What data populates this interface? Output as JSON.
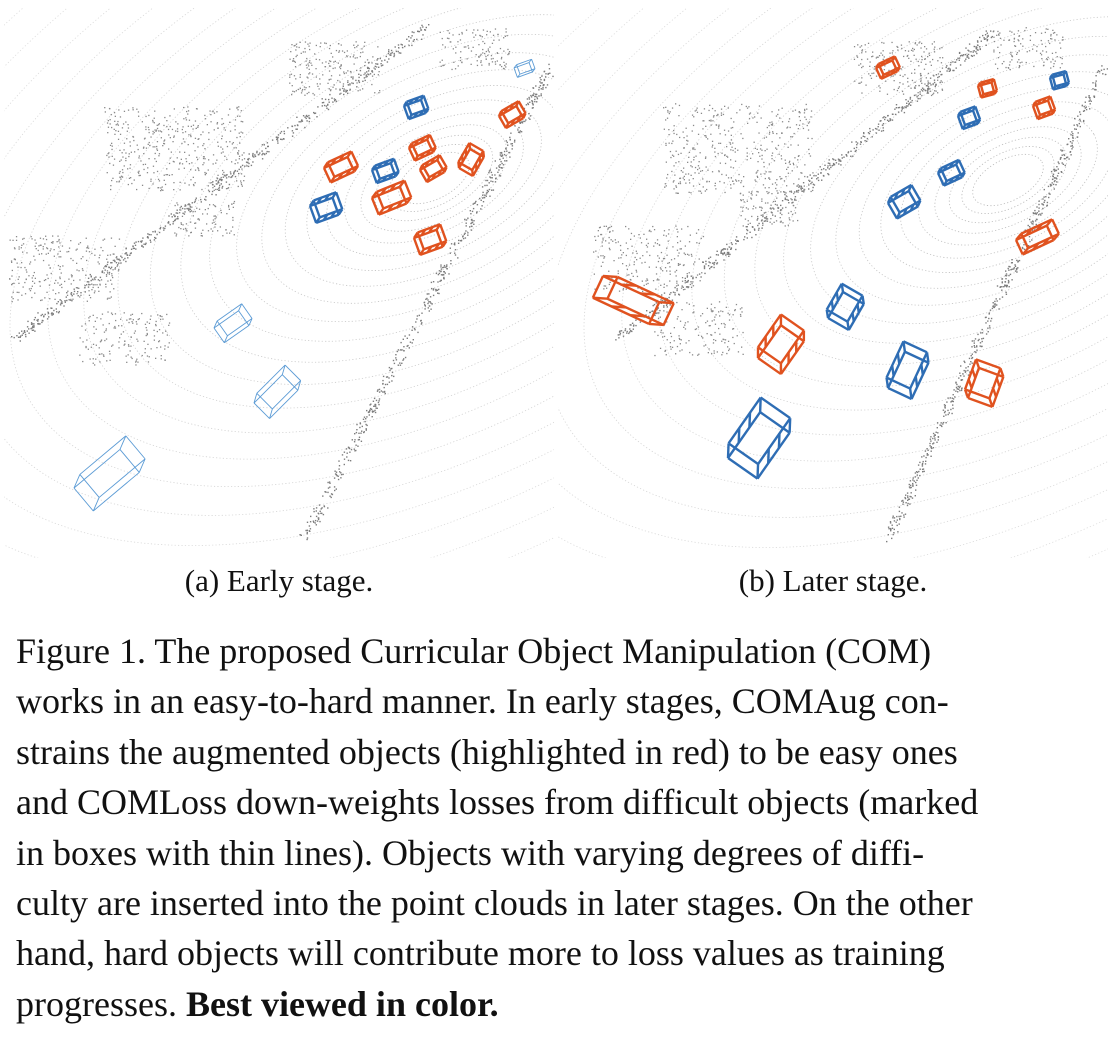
{
  "panels": [
    {
      "id": "a",
      "label": "(a) Early stage."
    },
    {
      "id": "b",
      "label": "(b) Later stage."
    }
  ],
  "caption": {
    "lines": [
      "Figure 1.  The proposed Curricular Object Manipulation (COM)",
      "works in an easy-to-hard manner. In early stages, COMAug con-",
      "strains the augmented objects (highlighted in red) to be easy ones",
      "and COMLoss down-weights losses from difficult objects (marked",
      "in boxes with thin lines).  Objects with varying degrees of diffi-",
      "culty are inserted into the point clouds in later stages. On the other",
      "hand, hard objects will contribute more to loss values as training"
    ],
    "last_line_prefix": "progresses. ",
    "last_line_bold": "Best viewed in color."
  },
  "colors": {
    "augmented": "#e0521f",
    "original": "#2e6db4",
    "original_thin": "#5b9bd5",
    "points": "#9a9a9a"
  }
}
